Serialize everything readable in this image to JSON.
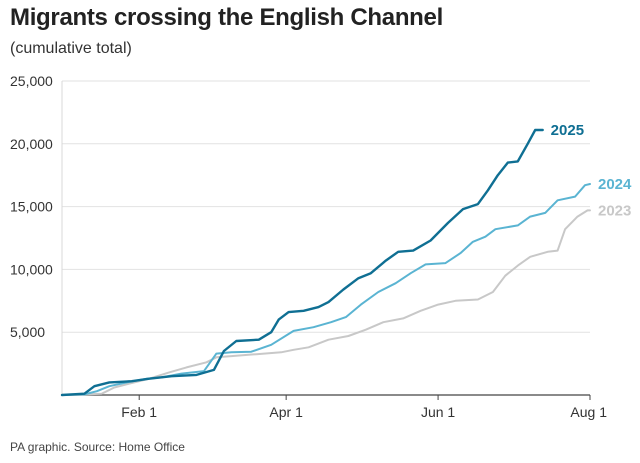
{
  "header": {
    "title": "Migrants crossing the English Channel",
    "subtitle": "(cumulative total)"
  },
  "footer": {
    "source": "PA graphic. Source: Home Office"
  },
  "chart_data": {
    "type": "line",
    "title": "Migrants crossing the English Channel",
    "subtitle": "(cumulative total)",
    "xlabel": "",
    "ylabel": "",
    "xlim": [
      "Jan 1",
      "Aug 1"
    ],
    "ylim": [
      0,
      25000
    ],
    "x_ticks": [
      "Feb 1",
      "Apr 1",
      "Jun 1",
      "Aug 1"
    ],
    "y_ticks": [
      "5,000",
      "10,000",
      "15,000",
      "20,000",
      "25,000"
    ],
    "y_tick_values": [
      5000,
      10000,
      15000,
      20000,
      25000
    ],
    "grid": "horizontal",
    "legend": "direct labels at line ends",
    "series": [
      {
        "name": "2023",
        "color": "#c8c8c8",
        "points": [
          [
            "Jan 1",
            0
          ],
          [
            "Jan 10",
            50
          ],
          [
            "Jan 17",
            100
          ],
          [
            "Jan 22",
            600
          ],
          [
            "Jan 28",
            900
          ],
          [
            "Feb 5",
            1300
          ],
          [
            "Feb 13",
            1800
          ],
          [
            "Feb 20",
            2200
          ],
          [
            "Feb 28",
            2600
          ],
          [
            "Mar 4",
            3000
          ],
          [
            "Mar 10",
            3100
          ],
          [
            "Mar 20",
            3250
          ],
          [
            "Mar 30",
            3400
          ],
          [
            "Apr 4",
            3600
          ],
          [
            "Apr 10",
            3800
          ],
          [
            "Apr 18",
            4400
          ],
          [
            "Apr 26",
            4700
          ],
          [
            "May 3",
            5200
          ],
          [
            "May 10",
            5800
          ],
          [
            "May 18",
            6100
          ],
          [
            "May 25",
            6700
          ],
          [
            "Jun 1",
            7200
          ],
          [
            "Jun 8",
            7500
          ],
          [
            "Jun 17",
            7600
          ],
          [
            "Jun 23",
            8200
          ],
          [
            "Jun 28",
            9500
          ],
          [
            "Jul 3",
            10300
          ],
          [
            "Jul 8",
            11000
          ],
          [
            "Jul 15",
            11400
          ],
          [
            "Jul 19",
            11500
          ],
          [
            "Jul 22",
            13200
          ],
          [
            "Jul 27",
            14200
          ],
          [
            "Jul 31",
            14700
          ],
          [
            "Aug 1",
            14700
          ]
        ]
      },
      {
        "name": "2024",
        "color": "#5ab4d2",
        "points": [
          [
            "Jan 1",
            0
          ],
          [
            "Jan 10",
            50
          ],
          [
            "Jan 15",
            300
          ],
          [
            "Jan 20",
            700
          ],
          [
            "Jan 27",
            1000
          ],
          [
            "Feb 4",
            1300
          ],
          [
            "Feb 10",
            1400
          ],
          [
            "Feb 18",
            1700
          ],
          [
            "Feb 27",
            1900
          ],
          [
            "Mar 4",
            3300
          ],
          [
            "Mar 10",
            3400
          ],
          [
            "Mar 18",
            3450
          ],
          [
            "Mar 26",
            4000
          ],
          [
            "Apr 4",
            5100
          ],
          [
            "Apr 12",
            5400
          ],
          [
            "Apr 19",
            5800
          ],
          [
            "Apr 25",
            6200
          ],
          [
            "May 1",
            7200
          ],
          [
            "May 8",
            8200
          ],
          [
            "May 15",
            8900
          ],
          [
            "May 21",
            9700
          ],
          [
            "May 27",
            10400
          ],
          [
            "Jun 4",
            10500
          ],
          [
            "Jun 10",
            11300
          ],
          [
            "Jun 15",
            12200
          ],
          [
            "Jun 20",
            12600
          ],
          [
            "Jun 24",
            13200
          ],
          [
            "Jul 3",
            13500
          ],
          [
            "Jul 8",
            14200
          ],
          [
            "Jul 14",
            14500
          ],
          [
            "Jul 19",
            15500
          ],
          [
            "Jul 26",
            15800
          ],
          [
            "Jul 30",
            16700
          ],
          [
            "Aug 1",
            16800
          ]
        ]
      },
      {
        "name": "2025",
        "color": "#0f6f93",
        "points": [
          [
            "Jan 1",
            0
          ],
          [
            "Jan 10",
            100
          ],
          [
            "Jan 14",
            700
          ],
          [
            "Jan 20",
            1000
          ],
          [
            "Jan 29",
            1100
          ],
          [
            "Feb 5",
            1300
          ],
          [
            "Feb 14",
            1500
          ],
          [
            "Feb 24",
            1600
          ],
          [
            "Mar 3",
            2000
          ],
          [
            "Mar 7",
            3500
          ],
          [
            "Mar 12",
            4300
          ],
          [
            "Mar 21",
            4400
          ],
          [
            "Mar 26",
            5000
          ],
          [
            "Mar 29",
            6000
          ],
          [
            "Apr 2",
            6600
          ],
          [
            "Apr 8",
            6700
          ],
          [
            "Apr 14",
            7000
          ],
          [
            "Apr 18",
            7400
          ],
          [
            "Apr 24",
            8400
          ],
          [
            "Apr 30",
            9300
          ],
          [
            "May 5",
            9700
          ],
          [
            "May 11",
            10700
          ],
          [
            "May 16",
            11400
          ],
          [
            "May 22",
            11500
          ],
          [
            "May 29",
            12300
          ],
          [
            "Jun 5",
            13700
          ],
          [
            "Jun 11",
            14800
          ],
          [
            "Jun 17",
            15200
          ],
          [
            "Jun 21",
            16300
          ],
          [
            "Jun 25",
            17500
          ],
          [
            "Jun 29",
            18500
          ],
          [
            "Jul 3",
            18600
          ],
          [
            "Jul 7",
            20000
          ],
          [
            "Jul 10",
            21100
          ],
          [
            "Jul 13",
            21100
          ]
        ]
      }
    ]
  }
}
